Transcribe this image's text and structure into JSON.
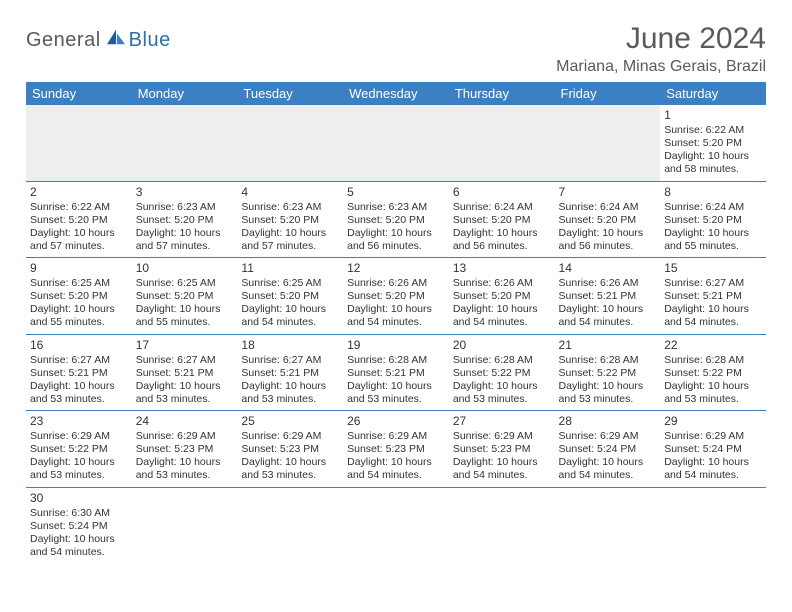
{
  "logo": {
    "text1": "General",
    "text2": "Blue"
  },
  "title": "June 2024",
  "location": "Mariana, Minas Gerais, Brazil",
  "colors": {
    "header_bg": "#3a80c3",
    "header_text": "#ffffff",
    "border": "#3a80c3",
    "empty_bg": "#eeeeee",
    "logo_gray": "#5a5a5a",
    "logo_blue": "#2b6fb0"
  },
  "weekdays": [
    "Sunday",
    "Monday",
    "Tuesday",
    "Wednesday",
    "Thursday",
    "Friday",
    "Saturday"
  ],
  "weeks": [
    [
      null,
      null,
      null,
      null,
      null,
      null,
      {
        "n": "1",
        "sr": "Sunrise: 6:22 AM",
        "ss": "Sunset: 5:20 PM",
        "dl": "Daylight: 10 hours and 58 minutes."
      }
    ],
    [
      {
        "n": "2",
        "sr": "Sunrise: 6:22 AM",
        "ss": "Sunset: 5:20 PM",
        "dl": "Daylight: 10 hours and 57 minutes."
      },
      {
        "n": "3",
        "sr": "Sunrise: 6:23 AM",
        "ss": "Sunset: 5:20 PM",
        "dl": "Daylight: 10 hours and 57 minutes."
      },
      {
        "n": "4",
        "sr": "Sunrise: 6:23 AM",
        "ss": "Sunset: 5:20 PM",
        "dl": "Daylight: 10 hours and 57 minutes."
      },
      {
        "n": "5",
        "sr": "Sunrise: 6:23 AM",
        "ss": "Sunset: 5:20 PM",
        "dl": "Daylight: 10 hours and 56 minutes."
      },
      {
        "n": "6",
        "sr": "Sunrise: 6:24 AM",
        "ss": "Sunset: 5:20 PM",
        "dl": "Daylight: 10 hours and 56 minutes."
      },
      {
        "n": "7",
        "sr": "Sunrise: 6:24 AM",
        "ss": "Sunset: 5:20 PM",
        "dl": "Daylight: 10 hours and 56 minutes."
      },
      {
        "n": "8",
        "sr": "Sunrise: 6:24 AM",
        "ss": "Sunset: 5:20 PM",
        "dl": "Daylight: 10 hours and 55 minutes."
      }
    ],
    [
      {
        "n": "9",
        "sr": "Sunrise: 6:25 AM",
        "ss": "Sunset: 5:20 PM",
        "dl": "Daylight: 10 hours and 55 minutes."
      },
      {
        "n": "10",
        "sr": "Sunrise: 6:25 AM",
        "ss": "Sunset: 5:20 PM",
        "dl": "Daylight: 10 hours and 55 minutes."
      },
      {
        "n": "11",
        "sr": "Sunrise: 6:25 AM",
        "ss": "Sunset: 5:20 PM",
        "dl": "Daylight: 10 hours and 54 minutes."
      },
      {
        "n": "12",
        "sr": "Sunrise: 6:26 AM",
        "ss": "Sunset: 5:20 PM",
        "dl": "Daylight: 10 hours and 54 minutes."
      },
      {
        "n": "13",
        "sr": "Sunrise: 6:26 AM",
        "ss": "Sunset: 5:20 PM",
        "dl": "Daylight: 10 hours and 54 minutes."
      },
      {
        "n": "14",
        "sr": "Sunrise: 6:26 AM",
        "ss": "Sunset: 5:21 PM",
        "dl": "Daylight: 10 hours and 54 minutes."
      },
      {
        "n": "15",
        "sr": "Sunrise: 6:27 AM",
        "ss": "Sunset: 5:21 PM",
        "dl": "Daylight: 10 hours and 54 minutes."
      }
    ],
    [
      {
        "n": "16",
        "sr": "Sunrise: 6:27 AM",
        "ss": "Sunset: 5:21 PM",
        "dl": "Daylight: 10 hours and 53 minutes."
      },
      {
        "n": "17",
        "sr": "Sunrise: 6:27 AM",
        "ss": "Sunset: 5:21 PM",
        "dl": "Daylight: 10 hours and 53 minutes."
      },
      {
        "n": "18",
        "sr": "Sunrise: 6:27 AM",
        "ss": "Sunset: 5:21 PM",
        "dl": "Daylight: 10 hours and 53 minutes."
      },
      {
        "n": "19",
        "sr": "Sunrise: 6:28 AM",
        "ss": "Sunset: 5:21 PM",
        "dl": "Daylight: 10 hours and 53 minutes."
      },
      {
        "n": "20",
        "sr": "Sunrise: 6:28 AM",
        "ss": "Sunset: 5:22 PM",
        "dl": "Daylight: 10 hours and 53 minutes."
      },
      {
        "n": "21",
        "sr": "Sunrise: 6:28 AM",
        "ss": "Sunset: 5:22 PM",
        "dl": "Daylight: 10 hours and 53 minutes."
      },
      {
        "n": "22",
        "sr": "Sunrise: 6:28 AM",
        "ss": "Sunset: 5:22 PM",
        "dl": "Daylight: 10 hours and 53 minutes."
      }
    ],
    [
      {
        "n": "23",
        "sr": "Sunrise: 6:29 AM",
        "ss": "Sunset: 5:22 PM",
        "dl": "Daylight: 10 hours and 53 minutes."
      },
      {
        "n": "24",
        "sr": "Sunrise: 6:29 AM",
        "ss": "Sunset: 5:23 PM",
        "dl": "Daylight: 10 hours and 53 minutes."
      },
      {
        "n": "25",
        "sr": "Sunrise: 6:29 AM",
        "ss": "Sunset: 5:23 PM",
        "dl": "Daylight: 10 hours and 53 minutes."
      },
      {
        "n": "26",
        "sr": "Sunrise: 6:29 AM",
        "ss": "Sunset: 5:23 PM",
        "dl": "Daylight: 10 hours and 54 minutes."
      },
      {
        "n": "27",
        "sr": "Sunrise: 6:29 AM",
        "ss": "Sunset: 5:23 PM",
        "dl": "Daylight: 10 hours and 54 minutes."
      },
      {
        "n": "28",
        "sr": "Sunrise: 6:29 AM",
        "ss": "Sunset: 5:24 PM",
        "dl": "Daylight: 10 hours and 54 minutes."
      },
      {
        "n": "29",
        "sr": "Sunrise: 6:29 AM",
        "ss": "Sunset: 5:24 PM",
        "dl": "Daylight: 10 hours and 54 minutes."
      }
    ],
    [
      {
        "n": "30",
        "sr": "Sunrise: 6:30 AM",
        "ss": "Sunset: 5:24 PM",
        "dl": "Daylight: 10 hours and 54 minutes."
      },
      null,
      null,
      null,
      null,
      null,
      null
    ]
  ]
}
